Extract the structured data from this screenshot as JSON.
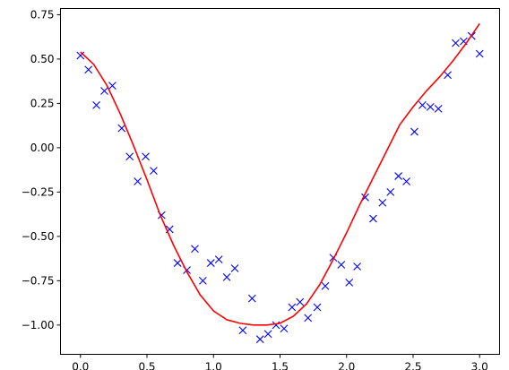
{
  "chart_data": {
    "type": "scatter",
    "title": "",
    "xlabel": "",
    "ylabel": "",
    "xlim": [
      -0.15,
      3.15
    ],
    "ylim": [
      -1.165,
      0.785
    ],
    "x_ticks": [
      0.0,
      0.5,
      1.0,
      1.5,
      2.0,
      2.5,
      3.0
    ],
    "x_tick_labels": [
      "0.0",
      "0.5",
      "1.0",
      "1.5",
      "2.0",
      "2.5",
      "3.0"
    ],
    "y_ticks": [
      0.75,
      0.5,
      0.25,
      0.0,
      -0.25,
      -0.5,
      -0.75,
      -1.0
    ],
    "y_tick_labels": [
      "0.75",
      "0.50",
      "0.25",
      "0.00",
      "−0.25",
      "−0.50",
      "−0.75",
      "−1.00"
    ],
    "grid": false,
    "legend": "none",
    "series": [
      {
        "kind": "scatter",
        "marker": "x",
        "color": "#0000ff",
        "x": [
          0.0,
          0.06,
          0.12,
          0.18,
          0.24,
          0.31,
          0.37,
          0.43,
          0.49,
          0.55,
          0.61,
          0.67,
          0.73,
          0.8,
          0.86,
          0.92,
          0.98,
          1.04,
          1.1,
          1.16,
          1.22,
          1.29,
          1.35,
          1.41,
          1.47,
          1.53,
          1.59,
          1.65,
          1.71,
          1.78,
          1.84,
          1.9,
          1.96,
          2.02,
          2.08,
          2.14,
          2.2,
          2.27,
          2.33,
          2.39,
          2.45,
          2.51,
          2.57,
          2.63,
          2.69,
          2.76,
          2.82,
          2.88,
          2.94,
          3.0
        ],
        "y": [
          0.52,
          0.44,
          0.24,
          0.32,
          0.35,
          0.11,
          -0.05,
          -0.19,
          -0.05,
          -0.13,
          -0.38,
          -0.46,
          -0.65,
          -0.69,
          -0.57,
          -0.75,
          -0.65,
          -0.63,
          -0.73,
          -0.68,
          -1.03,
          -0.85,
          -1.08,
          -1.05,
          -1.0,
          -1.02,
          -0.9,
          -0.87,
          -0.96,
          -0.9,
          -0.78,
          -0.62,
          -0.66,
          -0.76,
          -0.67,
          -0.28,
          -0.4,
          -0.31,
          -0.25,
          -0.16,
          -0.19,
          0.09,
          0.24,
          0.23,
          0.22,
          0.41,
          0.59,
          0.6,
          0.63,
          0.53
        ]
      },
      {
        "kind": "line",
        "color": "#ff0000",
        "x": [
          0.0,
          0.1,
          0.2,
          0.3,
          0.4,
          0.5,
          0.6,
          0.7,
          0.8,
          0.9,
          1.0,
          1.1,
          1.2,
          1.3,
          1.4,
          1.5,
          1.6,
          1.7,
          1.8,
          1.9,
          2.0,
          2.1,
          2.2,
          2.3,
          2.4,
          2.5,
          2.6,
          2.7,
          2.8,
          2.9,
          3.0
        ],
        "y": [
          0.54,
          0.47,
          0.35,
          0.19,
          0.01,
          -0.18,
          -0.38,
          -0.55,
          -0.7,
          -0.83,
          -0.92,
          -0.97,
          -0.99,
          -1.0,
          -1.0,
          -0.99,
          -0.95,
          -0.88,
          -0.77,
          -0.63,
          -0.48,
          -0.32,
          -0.17,
          -0.02,
          0.13,
          0.23,
          0.32,
          0.4,
          0.49,
          0.59,
          0.7
        ]
      }
    ]
  }
}
